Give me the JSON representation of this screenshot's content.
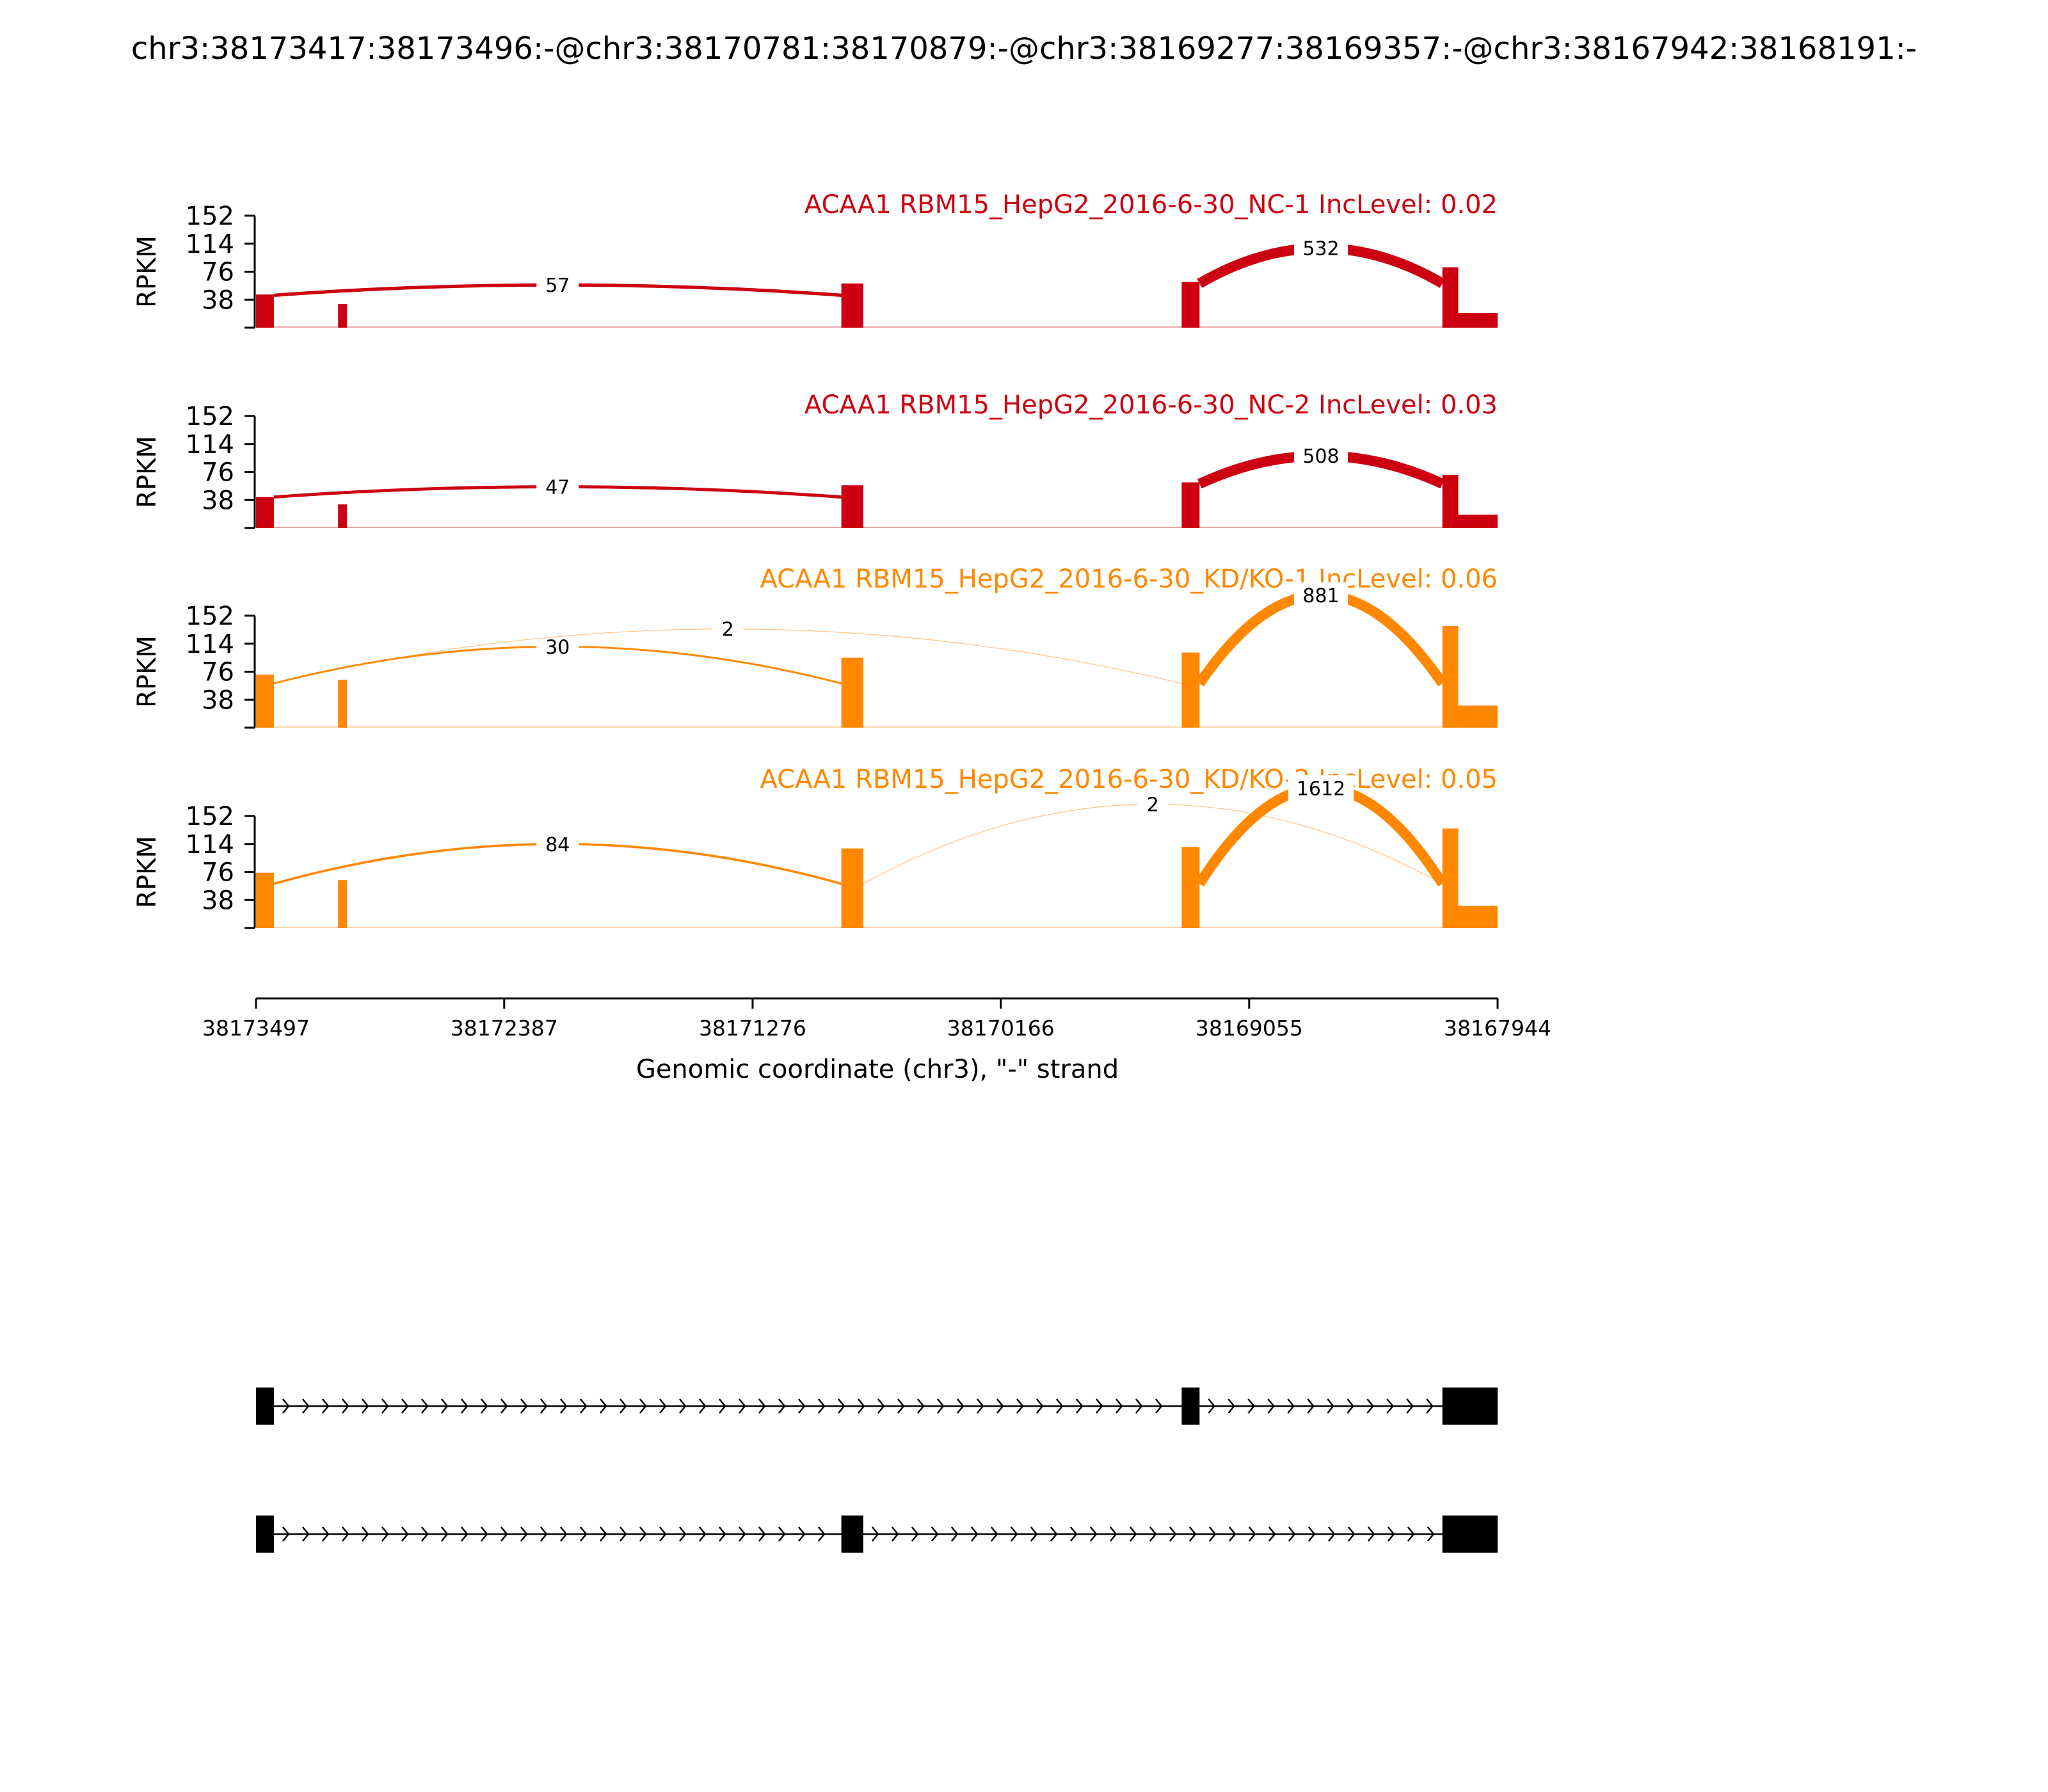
{
  "title": "chr3:38173417:38173496:-@chr3:38170781:38170879:-@chr3:38169277:38169357:-@chr3:38167942:38168191:-",
  "colors": {
    "nc": "#cc0011",
    "kd": "#ff8800",
    "axis": "#000000",
    "gene": "#000000"
  },
  "chart_data": {
    "type": "area",
    "chart_kind": "sashimi",
    "xlabel": "Genomic coordinate (chr3), \"-\" strand",
    "xlim": [
      38173497,
      38167944
    ],
    "x_ticks": [
      "38173497",
      "38172387",
      "38171276",
      "38170166",
      "38169055",
      "38167944"
    ],
    "ylabel": "RPKM",
    "ylim": [
      0,
      152
    ],
    "y_ticks": [
      "38",
      "76",
      "114",
      "152"
    ],
    "tracks": [
      {
        "title": "ACAA1 RBM15_HepG2_2016-6-30_NC-1 IncLevel: 0.02",
        "color": "#cc0011",
        "coverage": [
          {
            "start": 38173497,
            "end": 38173417,
            "level": 45
          },
          {
            "start": 38173130,
            "end": 38173090,
            "level": 32
          },
          {
            "start": 38170879,
            "end": 38170781,
            "level": 60
          },
          {
            "start": 38169357,
            "end": 38169277,
            "level": 62
          },
          {
            "start": 38168191,
            "end": 38168120,
            "level": 82
          },
          {
            "start": 38168120,
            "end": 38167944,
            "level": 20
          }
        ],
        "junctions": [
          {
            "from": 38173417,
            "to": 38170879,
            "count": "57",
            "peak": 58
          },
          {
            "from": 38169277,
            "to": 38168191,
            "count": "532",
            "peak": 108
          }
        ]
      },
      {
        "title": "ACAA1 RBM15_HepG2_2016-6-30_NC-2 IncLevel: 0.03",
        "color": "#cc0011",
        "coverage": [
          {
            "start": 38173497,
            "end": 38173417,
            "level": 42
          },
          {
            "start": 38173130,
            "end": 38173090,
            "level": 32
          },
          {
            "start": 38170879,
            "end": 38170781,
            "level": 58
          },
          {
            "start": 38169357,
            "end": 38169277,
            "level": 62
          },
          {
            "start": 38168191,
            "end": 38168120,
            "level": 72
          },
          {
            "start": 38168120,
            "end": 38167944,
            "level": 18
          }
        ],
        "junctions": [
          {
            "from": 38173417,
            "to": 38170879,
            "count": "47",
            "peak": 56
          },
          {
            "from": 38169277,
            "to": 38168191,
            "count": "508",
            "peak": 98
          }
        ]
      },
      {
        "title": "ACAA1 RBM15_HepG2_2016-6-30_KD/KO-1 IncLevel: 0.06",
        "color": "#ff8800",
        "coverage": [
          {
            "start": 38173497,
            "end": 38173417,
            "level": 72
          },
          {
            "start": 38173130,
            "end": 38173090,
            "level": 65
          },
          {
            "start": 38170879,
            "end": 38170781,
            "level": 95
          },
          {
            "start": 38169357,
            "end": 38169277,
            "level": 102
          },
          {
            "start": 38168191,
            "end": 38168120,
            "level": 138
          },
          {
            "start": 38168120,
            "end": 38167944,
            "level": 30
          }
        ],
        "junctions": [
          {
            "from": 38173417,
            "to": 38170879,
            "count": "30",
            "peak": 110
          },
          {
            "from": 38173417,
            "to": 38169357,
            "count": "2",
            "peak": 134
          },
          {
            "from": 38169277,
            "to": 38168191,
            "count": "881",
            "peak": 180
          }
        ]
      },
      {
        "title": "ACAA1 RBM15_HepG2_2016-6-30_KD/KO-2 IncLevel: 0.05",
        "color": "#ff8800",
        "coverage": [
          {
            "start": 38173497,
            "end": 38173417,
            "level": 75
          },
          {
            "start": 38173130,
            "end": 38173090,
            "level": 65
          },
          {
            "start": 38170879,
            "end": 38170781,
            "level": 108
          },
          {
            "start": 38169357,
            "end": 38169277,
            "level": 110
          },
          {
            "start": 38168191,
            "end": 38168120,
            "level": 135
          },
          {
            "start": 38168120,
            "end": 38167944,
            "level": 30
          }
        ],
        "junctions": [
          {
            "from": 38173417,
            "to": 38170879,
            "count": "84",
            "peak": 114
          },
          {
            "from": 38170781,
            "to": 38168191,
            "count": "2",
            "peak": 168
          },
          {
            "from": 38169277,
            "to": 38168191,
            "count": "1612",
            "peak": 190
          }
        ]
      }
    ],
    "isoforms": [
      {
        "exons": [
          [
            38173497,
            38173417
          ],
          [
            38169357,
            38169277
          ],
          [
            38168191,
            38167944
          ]
        ]
      },
      {
        "exons": [
          [
            38173497,
            38173417
          ],
          [
            38170879,
            38170781
          ],
          [
            38168191,
            38167944
          ]
        ]
      }
    ]
  }
}
